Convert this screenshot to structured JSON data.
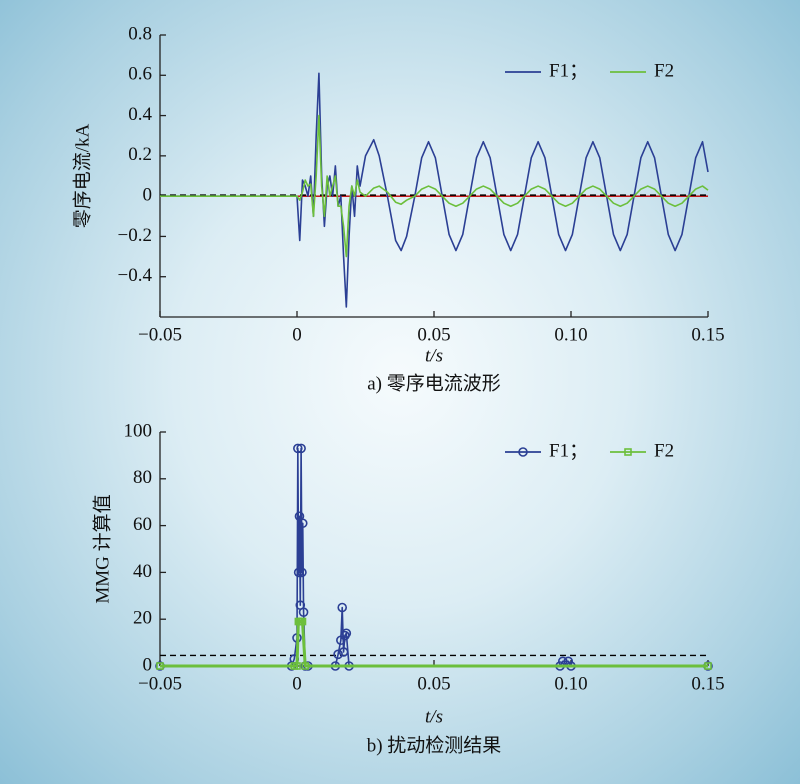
{
  "chart_data": [
    {
      "type": "line",
      "ylabel": "零序电流/kA",
      "xlabel": "t/s",
      "caption": "a) 零序电流波形",
      "x": [
        -0.05,
        -0.02,
        -0.001,
        0,
        0.001,
        0.002,
        0.003,
        0.004,
        0.005,
        0.006,
        0.007,
        0.008,
        0.009,
        0.01,
        0.011,
        0.012,
        0.013,
        0.014,
        0.015,
        0.016,
        0.017,
        0.018,
        0.019,
        0.02,
        0.021,
        0.022,
        0.023,
        0.025,
        0.028,
        0.03,
        0.033,
        0.036,
        0.038,
        0.04,
        0.043,
        0.0455,
        0.048,
        0.0505,
        0.053,
        0.0555,
        0.058,
        0.0605,
        0.063,
        0.0655,
        0.068,
        0.0705,
        0.073,
        0.0755,
        0.078,
        0.0805,
        0.083,
        0.0855,
        0.088,
        0.0905,
        0.093,
        0.0955,
        0.098,
        0.1005,
        0.103,
        0.1055,
        0.108,
        0.1105,
        0.113,
        0.1155,
        0.118,
        0.1205,
        0.123,
        0.1255,
        0.128,
        0.1305,
        0.133,
        0.1355,
        0.138,
        0.1405,
        0.143,
        0.1455,
        0.148,
        0.15
      ],
      "series": [
        {
          "name": "F1；",
          "color": "#2b3f94",
          "values": [
            0,
            0,
            0,
            0,
            -0.22,
            0.08,
            0.05,
            0,
            0.1,
            -0.1,
            0.3,
            0.61,
            0.1,
            -0.15,
            0.05,
            0.1,
            0,
            0.15,
            -0.05,
            0,
            -0.3,
            -0.55,
            -0.2,
            0.05,
            -0.1,
            0.15,
            0.05,
            0.2,
            0.28,
            0.2,
            0,
            -0.22,
            -0.27,
            -0.2,
            0,
            0.19,
            0.27,
            0.19,
            0,
            -0.19,
            -0.27,
            -0.19,
            0,
            0.19,
            0.27,
            0.19,
            0,
            -0.19,
            -0.27,
            -0.19,
            0,
            0.19,
            0.27,
            0.19,
            0,
            -0.19,
            -0.27,
            -0.19,
            0,
            0.19,
            0.27,
            0.19,
            0,
            -0.19,
            -0.27,
            -0.19,
            0,
            0.19,
            0.27,
            0.19,
            0,
            -0.19,
            -0.27,
            -0.19,
            0,
            0.19,
            0.27,
            0.12
          ]
        },
        {
          "name": "F2",
          "color": "#6cbf3c",
          "values": [
            0,
            0,
            0,
            0,
            -0.02,
            0.02,
            0.08,
            0.05,
            0.06,
            -0.1,
            0.1,
            0.4,
            0.05,
            -0.1,
            0.1,
            0,
            0.05,
            0.1,
            -0.05,
            -0.05,
            -0.15,
            -0.3,
            -0.05,
            0.05,
            0,
            0.08,
            0.02,
            0,
            0.04,
            0.05,
            0.02,
            -0.03,
            -0.04,
            -0.02,
            0,
            0.035,
            0.05,
            0.035,
            0,
            -0.035,
            -0.05,
            -0.035,
            0,
            0.035,
            0.05,
            0.035,
            0,
            -0.035,
            -0.05,
            -0.035,
            0,
            0.035,
            0.05,
            0.035,
            0,
            -0.035,
            -0.05,
            -0.035,
            0,
            0.035,
            0.05,
            0.035,
            0,
            -0.035,
            -0.05,
            -0.035,
            0,
            0.035,
            0.05,
            0.035,
            0,
            -0.035,
            -0.05,
            -0.035,
            0,
            0.035,
            0.05,
            0.03
          ]
        }
      ],
      "hlines": [
        {
          "value": 0,
          "color": "#c00000",
          "dash": false
        },
        {
          "value": 0.005,
          "color": "#000000",
          "dash": true
        }
      ],
      "xlim": [
        -0.05,
        0.15
      ],
      "xticks": [
        {
          "value": -0.05,
          "label": "−0.05"
        },
        0,
        0.05,
        {
          "value": 0.1,
          "label": "0.10"
        },
        0.15
      ],
      "ylim": [
        -0.6,
        0.8
      ],
      "yticks": [
        {
          "value": -0.4,
          "label": "−0.4"
        },
        {
          "value": -0.2,
          "label": "−0.2"
        },
        0,
        0.2,
        0.4,
        0.6,
        0.8
      ],
      "legend": "upper right"
    },
    {
      "type": "line",
      "ylabel": "MMG 计算值",
      "xlabel": "t/s",
      "caption": "b) 扰动检测结果",
      "series": [
        {
          "name": "F1；",
          "color": "#2b3f94",
          "marker": "circle",
          "x": [
            -0.05,
            -0.002,
            -0.001,
            0,
            0.0003,
            0.0006,
            0.0009,
            0.0012,
            0.0015,
            0.0018,
            0.0021,
            0.0024,
            0.003,
            0.004,
            0.014,
            0.015,
            0.016,
            0.0165,
            0.017,
            0.0175,
            0.018,
            0.019,
            0.096,
            0.097,
            0.099,
            0.1,
            0.15
          ],
          "values": [
            0,
            0,
            3,
            12,
            93,
            40,
            64,
            26,
            93,
            40,
            61,
            23,
            0,
            0,
            0,
            5,
            11,
            25,
            6,
            13,
            14,
            0,
            0,
            2,
            2,
            0,
            0
          ]
        },
        {
          "name": "F2",
          "color": "#6cbf3c",
          "marker": "square",
          "x": [
            -0.05,
            -0.001,
            0,
            0.0005,
            0.001,
            0.0015,
            0.002,
            0.003,
            0.15
          ],
          "values": [
            0,
            0,
            0,
            19,
            19,
            19,
            19,
            0,
            0
          ]
        }
      ],
      "hlines": [
        {
          "value": 4.5,
          "color": "#000000",
          "dash": true
        }
      ],
      "xlim": [
        -0.05,
        0.15
      ],
      "xticks": [
        {
          "value": -0.05,
          "label": "−0.05"
        },
        0,
        0.05,
        {
          "value": 0.1,
          "label": "0.10"
        },
        0.15
      ],
      "ylim": [
        0,
        100
      ],
      "yticks": [
        0,
        20,
        40,
        60,
        80,
        100
      ],
      "legend": "upper right"
    }
  ]
}
